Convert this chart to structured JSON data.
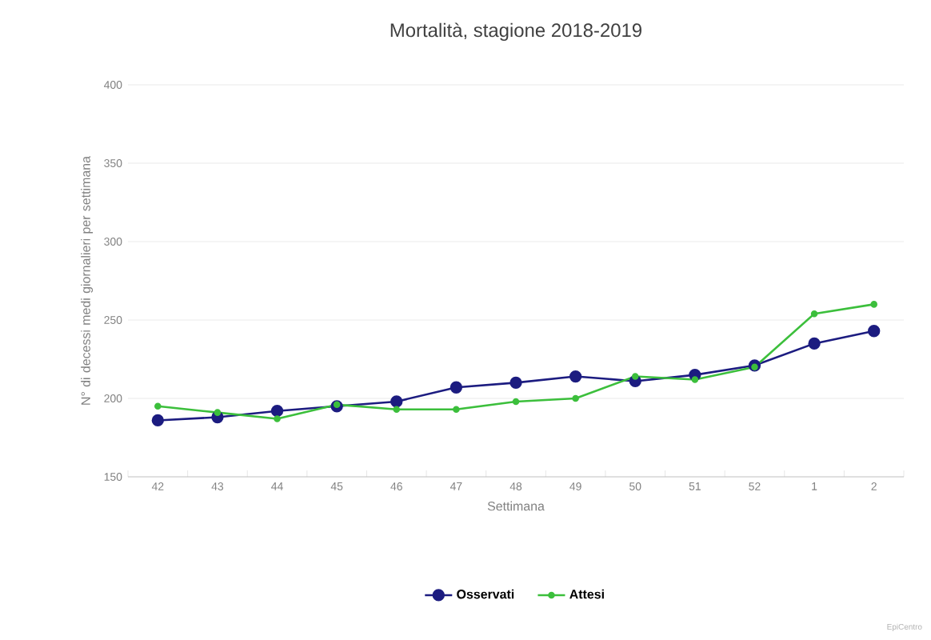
{
  "chart_data": {
    "type": "line",
    "title": "Mortalità, stagione 2018-2019",
    "xlabel": "Settimana",
    "ylabel": "N° di decessi medi giornalieri per settimana",
    "categories": [
      "42",
      "43",
      "44",
      "45",
      "46",
      "47",
      "48",
      "49",
      "50",
      "51",
      "52",
      "1",
      "2"
    ],
    "series": [
      {
        "name": "Osservati",
        "color": "#1c1c80",
        "values": [
          186,
          188,
          192,
          195,
          198,
          207,
          210,
          214,
          211,
          215,
          221,
          235,
          243
        ]
      },
      {
        "name": "Attesi",
        "color": "#3cbf3c",
        "values": [
          195,
          191,
          187,
          196,
          193,
          193,
          198,
          200,
          214,
          212,
          220,
          254,
          260
        ]
      }
    ],
    "ylim": [
      150,
      400
    ],
    "yticks": [
      150,
      200,
      250,
      300,
      350,
      400
    ],
    "grid": "y",
    "legend": "bottom",
    "marker": "circle",
    "line_style": "solid",
    "annotations": [
      "EpiCentro"
    ]
  }
}
